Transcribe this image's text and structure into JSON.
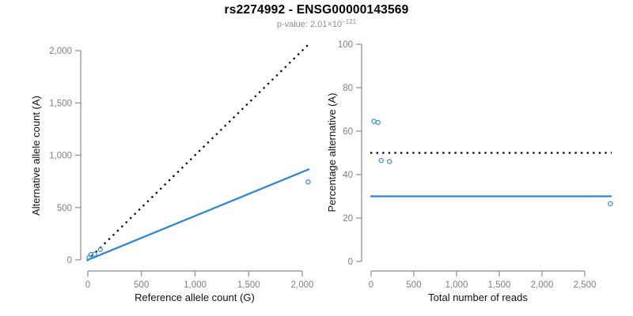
{
  "header": {
    "title": "rs2274992 - ENSG00000143569",
    "subtitle_label": "p-value: ",
    "p_value_mantissa": "2.01×10",
    "p_value_exponent": "−121"
  },
  "colors": {
    "accent_blue": "#2b82d9",
    "marker_blue": "#3d8fdd",
    "dotted_black": "#000000",
    "axis_line": "#8a8a8a",
    "tick_text": "#7f7f7f",
    "axis_title_text": "#111111",
    "background": "#ffffff"
  },
  "chart_data": [
    {
      "type": "scatter",
      "name": "allele-counts-scatter",
      "xlabel": "Reference allele count (G)",
      "ylabel": "Alternative allele count (A)",
      "xlim": [
        0,
        2000
      ],
      "ylim": [
        0,
        2000
      ],
      "x_ticks": [
        0,
        500,
        1000,
        1500,
        2000
      ],
      "x_tick_labels": [
        "0",
        "500",
        "1,000",
        "1,500",
        "2,000"
      ],
      "y_ticks": [
        0,
        500,
        1000,
        1500,
        2000
      ],
      "y_tick_labels": [
        "0",
        "500",
        "1,000",
        "1,500",
        "2,000"
      ],
      "grid": false,
      "legend": "none",
      "points": [
        [
          12,
          22
        ],
        [
          29,
          52
        ],
        [
          63,
          55
        ],
        [
          117,
          99
        ],
        [
          2055,
          745
        ]
      ],
      "lines": [
        {
          "name": "expected-50pct-line",
          "style": "dotted",
          "color": "#000000",
          "slope": 1,
          "intercept": 0
        },
        {
          "name": "observed-ratio-line",
          "style": "solid",
          "color": "#2b82d9",
          "slope": 0.42,
          "intercept": 0
        }
      ]
    },
    {
      "type": "scatter",
      "name": "percentage-alternative-scatter",
      "xlabel": "Total number of reads",
      "ylabel": "Percentage alternative (A)",
      "xlim": [
        0,
        2500
      ],
      "ylim": [
        0,
        100
      ],
      "x_ticks": [
        0,
        500,
        1000,
        1500,
        2000,
        2500
      ],
      "x_tick_labels": [
        "0",
        "500",
        "1,000",
        "1,500",
        "2,000",
        "2,500"
      ],
      "y_ticks": [
        0,
        20,
        40,
        60,
        80,
        100
      ],
      "y_tick_labels": [
        "0",
        "20",
        "40",
        "60",
        "80",
        "100"
      ],
      "grid": false,
      "legend": "none",
      "points": [
        [
          34,
          64.5
        ],
        [
          81,
          64
        ],
        [
          118,
          46.5
        ],
        [
          216,
          46
        ],
        [
          2800,
          26.6
        ]
      ],
      "lines": [
        {
          "name": "expected-50pct-line",
          "style": "dotted",
          "color": "#000000",
          "y": 50
        },
        {
          "name": "observed-ratio-line",
          "style": "solid",
          "color": "#2b82d9",
          "y": 30
        }
      ]
    }
  ]
}
